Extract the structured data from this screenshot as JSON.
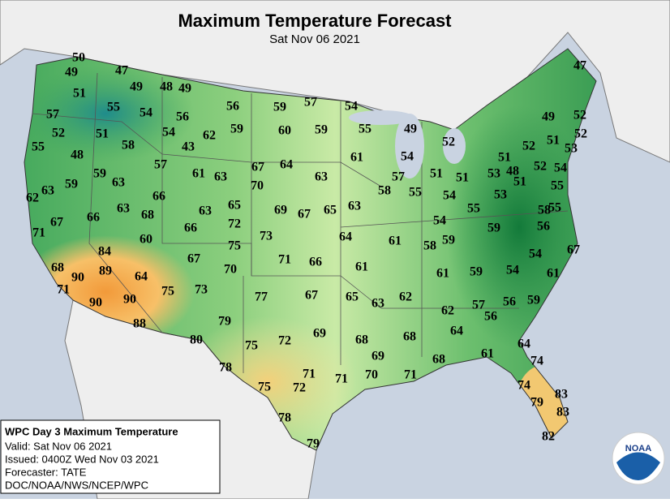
{
  "title": "Maximum Temperature Forecast",
  "subtitle": "Sat Nov 06 2021",
  "temperatures": [
    50,
    49,
    47,
    51,
    49,
    48,
    49,
    57,
    55,
    54,
    56,
    56,
    59,
    57,
    54,
    52,
    51,
    58,
    54,
    62,
    59,
    60,
    59,
    55,
    49,
    55,
    48,
    43,
    52,
    61,
    57,
    54,
    59,
    63,
    61,
    63,
    67,
    64,
    63,
    57,
    51,
    51,
    59,
    70,
    58,
    55,
    62,
    63,
    66,
    65,
    69,
    67,
    65,
    63,
    63,
    68,
    63,
    54,
    55,
    53,
    67,
    66,
    72,
    54,
    59,
    71,
    60,
    66,
    73,
    64,
    61,
    58,
    59,
    75,
    84,
    67,
    71,
    66,
    61,
    89,
    70,
    68,
    64,
    61,
    59,
    54,
    61,
    90,
    71,
    75,
    73,
    77,
    67,
    65,
    63,
    62,
    90,
    90,
    62,
    57,
    56,
    59,
    56,
    88,
    79,
    69,
    68,
    68,
    64,
    80,
    75,
    72,
    69,
    68,
    61,
    64,
    74,
    78,
    71,
    71,
    70,
    71,
    75,
    72,
    74,
    79,
    83,
    83,
    78,
    79,
    82,
    47,
    52,
    49,
    52,
    51,
    53,
    52,
    51,
    52,
    54,
    53,
    48,
    51,
    55,
    55,
    58,
    56,
    54,
    67
  ],
  "info_box": {
    "title": "WPC Day 3 Maximum Temperature",
    "lines": [
      "Valid: Sat Nov 06 2021",
      "Issued: 0400Z Wed Nov 03 2021",
      "Forecaster: TATE",
      "DOC/NOAA/NWS/NCEP/WPC"
    ]
  },
  "logo": "NOAA"
}
